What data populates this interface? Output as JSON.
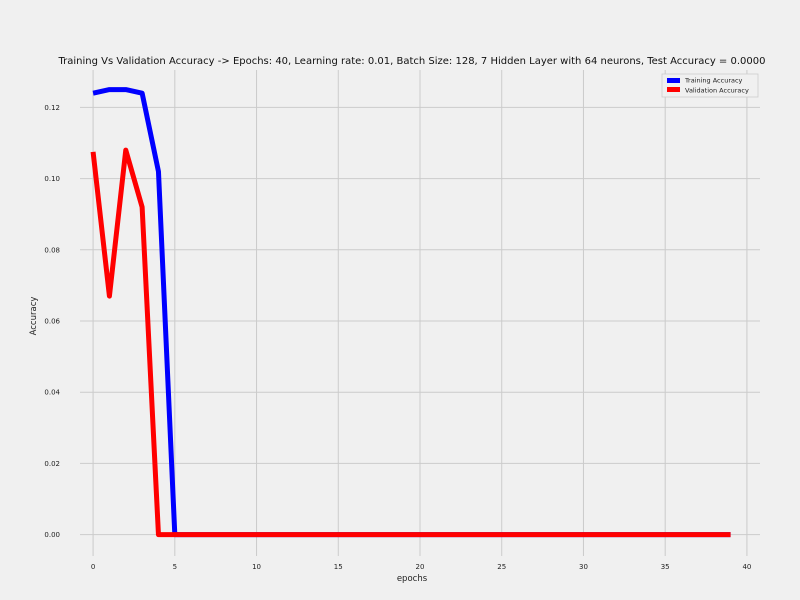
{
  "chart_data": {
    "type": "line",
    "title": "Training Vs Validation Accuracy -> Epochs: 40, Learning rate: 0.01, Batch Size: 128, 7 Hidden Layer with 64 neurons, Test Accuracy = 0.0000",
    "xlabel": "epochs",
    "ylabel": "Accuracy",
    "xlim": [
      -0.8,
      40.8
    ],
    "ylim": [
      -0.006,
      0.1305
    ],
    "xticks": [
      0,
      5,
      10,
      15,
      20,
      25,
      30,
      35,
      40
    ],
    "xtick_labels": [
      "0",
      "5",
      "10",
      "15",
      "20",
      "25",
      "30",
      "35",
      "40"
    ],
    "yticks": [
      0.0,
      0.02,
      0.04,
      0.06,
      0.08,
      0.1,
      0.12
    ],
    "ytick_labels": [
      "0.00",
      "0.02",
      "0.04",
      "0.06",
      "0.08",
      "0.10",
      "0.12"
    ],
    "grid": true,
    "legend_position": "top-right",
    "series": [
      {
        "name": "Training Accuracy",
        "color": "#0000ff",
        "x": [
          0,
          1,
          2,
          3,
          4,
          5,
          6,
          7,
          8,
          9,
          10,
          11,
          12,
          13,
          14,
          15,
          16,
          17,
          18,
          19,
          20,
          21,
          22,
          23,
          24,
          25,
          26,
          27,
          28,
          29,
          30,
          31,
          32,
          33,
          34,
          35,
          36,
          37,
          38,
          39
        ],
        "values": [
          0.124,
          0.125,
          0.125,
          0.124,
          0.102,
          0.0,
          0.0,
          0.0,
          0.0,
          0.0,
          0.0,
          0.0,
          0.0,
          0.0,
          0.0,
          0.0,
          0.0,
          0.0,
          0.0,
          0.0,
          0.0,
          0.0,
          0.0,
          0.0,
          0.0,
          0.0,
          0.0,
          0.0,
          0.0,
          0.0,
          0.0,
          0.0,
          0.0,
          0.0,
          0.0,
          0.0,
          0.0,
          0.0,
          0.0,
          0.0
        ]
      },
      {
        "name": "Validation Accuracy",
        "color": "#ff0000",
        "x": [
          0,
          1,
          2,
          3,
          4,
          5,
          6,
          7,
          8,
          9,
          10,
          11,
          12,
          13,
          14,
          15,
          16,
          17,
          18,
          19,
          20,
          21,
          22,
          23,
          24,
          25,
          26,
          27,
          28,
          29,
          30,
          31,
          32,
          33,
          34,
          35,
          36,
          37,
          38,
          39
        ],
        "values": [
          0.1075,
          0.067,
          0.108,
          0.092,
          0.0,
          0.0,
          0.0,
          0.0,
          0.0,
          0.0,
          0.0,
          0.0,
          0.0,
          0.0,
          0.0,
          0.0,
          0.0,
          0.0,
          0.0,
          0.0,
          0.0,
          0.0,
          0.0,
          0.0,
          0.0,
          0.0,
          0.0,
          0.0,
          0.0,
          0.0,
          0.0,
          0.0,
          0.0,
          0.0,
          0.0,
          0.0,
          0.0,
          0.0,
          0.0,
          0.0
        ]
      }
    ]
  }
}
